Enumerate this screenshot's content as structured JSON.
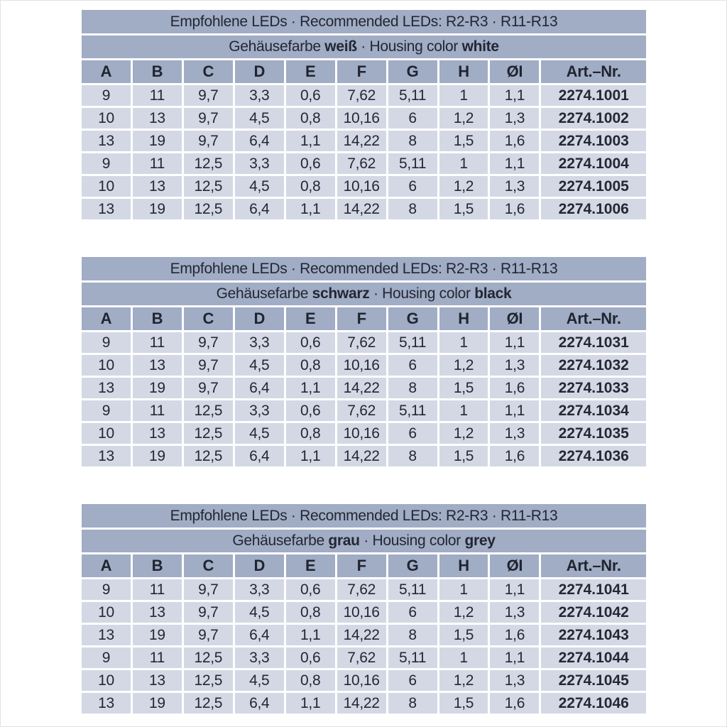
{
  "colors": {
    "header_bg": "#a1acc5",
    "cell_bg": "#d3d8e4",
    "separator": "#ffffff",
    "text": "#232833",
    "page_bg": "#ffffff"
  },
  "tables": [
    {
      "title": "Empfohlene LEDs · Recommended LEDs: R2-R3 · R11-R13",
      "subtitle": {
        "prefix": "Gehäusefarbe ",
        "color_de": "weiß",
        "middle": " · Housing color ",
        "color_en": "white"
      },
      "columns": [
        "A",
        "B",
        "C",
        "D",
        "E",
        "F",
        "G",
        "H",
        "ØI",
        "Art.–Nr."
      ],
      "rows": [
        {
          "cells": [
            "9",
            "11",
            "9,7",
            "3,3",
            "0,6",
            "7,62",
            "5,11",
            "1",
            "1,1"
          ],
          "art": "2274.1001"
        },
        {
          "cells": [
            "10",
            "13",
            "9,7",
            "4,5",
            "0,8",
            "10,16",
            "6",
            "1,2",
            "1,3"
          ],
          "art": "2274.1002"
        },
        {
          "cells": [
            "13",
            "19",
            "9,7",
            "6,4",
            "1,1",
            "14,22",
            "8",
            "1,5",
            "1,6"
          ],
          "art": "2274.1003"
        },
        {
          "cells": [
            "9",
            "11",
            "12,5",
            "3,3",
            "0,6",
            "7,62",
            "5,11",
            "1",
            "1,1"
          ],
          "art": "2274.1004"
        },
        {
          "cells": [
            "10",
            "13",
            "12,5",
            "4,5",
            "0,8",
            "10,16",
            "6",
            "1,2",
            "1,3"
          ],
          "art": "2274.1005"
        },
        {
          "cells": [
            "13",
            "19",
            "12,5",
            "6,4",
            "1,1",
            "14,22",
            "8",
            "1,5",
            "1,6"
          ],
          "art": "2274.1006"
        }
      ]
    },
    {
      "title": "Empfohlene LEDs · Recommended LEDs: R2-R3 · R11-R13",
      "subtitle": {
        "prefix": "Gehäusefarbe ",
        "color_de": "schwarz",
        "middle": " · Housing color ",
        "color_en": "black"
      },
      "columns": [
        "A",
        "B",
        "C",
        "D",
        "E",
        "F",
        "G",
        "H",
        "ØI",
        "Art.–Nr."
      ],
      "rows": [
        {
          "cells": [
            "9",
            "11",
            "9,7",
            "3,3",
            "0,6",
            "7,62",
            "5,11",
            "1",
            "1,1"
          ],
          "art": "2274.1031"
        },
        {
          "cells": [
            "10",
            "13",
            "9,7",
            "4,5",
            "0,8",
            "10,16",
            "6",
            "1,2",
            "1,3"
          ],
          "art": "2274.1032"
        },
        {
          "cells": [
            "13",
            "19",
            "9,7",
            "6,4",
            "1,1",
            "14,22",
            "8",
            "1,5",
            "1,6"
          ],
          "art": "2274.1033"
        },
        {
          "cells": [
            "9",
            "11",
            "12,5",
            "3,3",
            "0,6",
            "7,62",
            "5,11",
            "1",
            "1,1"
          ],
          "art": "2274.1034"
        },
        {
          "cells": [
            "10",
            "13",
            "12,5",
            "4,5",
            "0,8",
            "10,16",
            "6",
            "1,2",
            "1,3"
          ],
          "art": "2274.1035"
        },
        {
          "cells": [
            "13",
            "19",
            "12,5",
            "6,4",
            "1,1",
            "14,22",
            "8",
            "1,5",
            "1,6"
          ],
          "art": "2274.1036"
        }
      ]
    },
    {
      "title": "Empfohlene LEDs · Recommended LEDs: R2-R3 · R11-R13",
      "subtitle": {
        "prefix": "Gehäusefarbe ",
        "color_de": "grau",
        "middle": " · Housing color ",
        "color_en": "grey"
      },
      "columns": [
        "A",
        "B",
        "C",
        "D",
        "E",
        "F",
        "G",
        "H",
        "ØI",
        "Art.–Nr."
      ],
      "rows": [
        {
          "cells": [
            "9",
            "11",
            "9,7",
            "3,3",
            "0,6",
            "7,62",
            "5,11",
            "1",
            "1,1"
          ],
          "art": "2274.1041"
        },
        {
          "cells": [
            "10",
            "13",
            "9,7",
            "4,5",
            "0,8",
            "10,16",
            "6",
            "1,2",
            "1,3"
          ],
          "art": "2274.1042"
        },
        {
          "cells": [
            "13",
            "19",
            "9,7",
            "6,4",
            "1,1",
            "14,22",
            "8",
            "1,5",
            "1,6"
          ],
          "art": "2274.1043"
        },
        {
          "cells": [
            "9",
            "11",
            "12,5",
            "3,3",
            "0,6",
            "7,62",
            "5,11",
            "1",
            "1,1"
          ],
          "art": "2274.1044"
        },
        {
          "cells": [
            "10",
            "13",
            "12,5",
            "4,5",
            "0,8",
            "10,16",
            "6",
            "1,2",
            "1,3"
          ],
          "art": "2274.1045"
        },
        {
          "cells": [
            "13",
            "19",
            "12,5",
            "6,4",
            "1,1",
            "14,22",
            "8",
            "1,5",
            "1,6"
          ],
          "art": "2274.1046"
        }
      ]
    }
  ]
}
